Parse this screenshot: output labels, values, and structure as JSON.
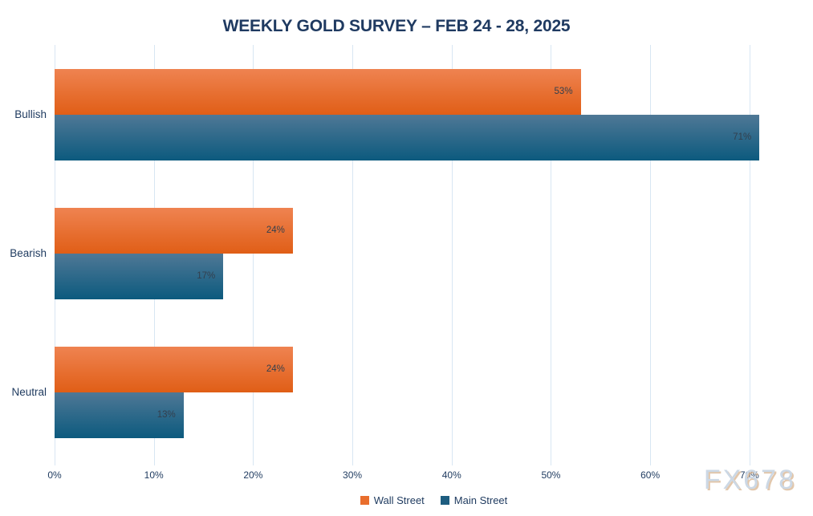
{
  "title": "WEEKLY GOLD SURVEY – FEB 24 - 28, 2025",
  "watermark": "FX678",
  "chart_data": {
    "type": "bar",
    "orientation": "horizontal",
    "title": "WEEKLY GOLD SURVEY – FEB 24 - 28, 2025",
    "categories": [
      "Bullish",
      "Bearish",
      "Neutral"
    ],
    "series": [
      {
        "name": "Wall Street",
        "values": [
          53,
          24,
          24
        ],
        "color_top": "#ef8351",
        "color_bottom": "#e05e16",
        "legend_color": "#e96e2d"
      },
      {
        "name": "Main Street",
        "values": [
          71,
          17,
          13
        ],
        "color_top": "#4f7896",
        "color_bottom": "#0c5a7e",
        "legend_color": "#1e5d80"
      }
    ],
    "value_suffix": "%",
    "data_labels": [
      "53%",
      "71%",
      "24%",
      "17%",
      "24%",
      "13%"
    ],
    "x_ticks": [
      0,
      10,
      20,
      30,
      40,
      50,
      60,
      70
    ],
    "x_tick_labels": [
      "0%",
      "10%",
      "20%",
      "30%",
      "40%",
      "50%",
      "60%",
      "70%"
    ],
    "xlim": [
      0,
      76.4
    ],
    "xlabel": "",
    "ylabel": "",
    "grid": true,
    "legend_position": "bottom",
    "legend_entries": [
      "Wall Street",
      "Main Street"
    ]
  },
  "colors": {
    "title_text": "#1f3a61",
    "axis_text": "#1e3a5f",
    "data_label_text": "#333f4d",
    "gridline": "#d8e6f3",
    "wall_street_top": "#ef8351",
    "wall_street_bottom": "#e05e16",
    "main_street_top": "#4f7896",
    "main_street_bottom": "#0c5a7e",
    "watermark_text": "#ccd8e5",
    "watermark_shadow": "#d9b896",
    "background": "#ffffff"
  }
}
